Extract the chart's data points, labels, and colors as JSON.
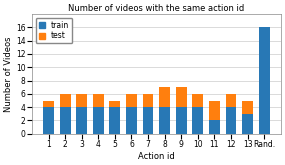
{
  "title": "Number of videos with the same action id",
  "xlabel": "Action id",
  "ylabel": "Number of Videos",
  "categories": [
    "1",
    "2",
    "3",
    "4",
    "5",
    "6",
    "7",
    "8",
    "9",
    "10",
    "11",
    "12",
    "13",
    "Rand."
  ],
  "blue_values": [
    4,
    4,
    4,
    4,
    4,
    4,
    4,
    4,
    4,
    4,
    2,
    4,
    3,
    16
  ],
  "orange_values": [
    1,
    2,
    2,
    2,
    1,
    2,
    2,
    3,
    3,
    2,
    3,
    2,
    2,
    0
  ],
  "blue_color": "#2878b5",
  "orange_color": "#ff7f0e",
  "legend_blue": "train",
  "legend_orange": "test",
  "ylim": [
    0,
    18
  ],
  "yticks": [
    0,
    2,
    4,
    6,
    8,
    10,
    12,
    14,
    16
  ],
  "title_fontsize": 6,
  "axis_fontsize": 6,
  "tick_fontsize": 5.5,
  "legend_fontsize": 5.5,
  "chart_bg": "#ffffff",
  "fig_bg": "#ffffff",
  "figsize": [
    2.85,
    1.65
  ],
  "dpi": 100
}
